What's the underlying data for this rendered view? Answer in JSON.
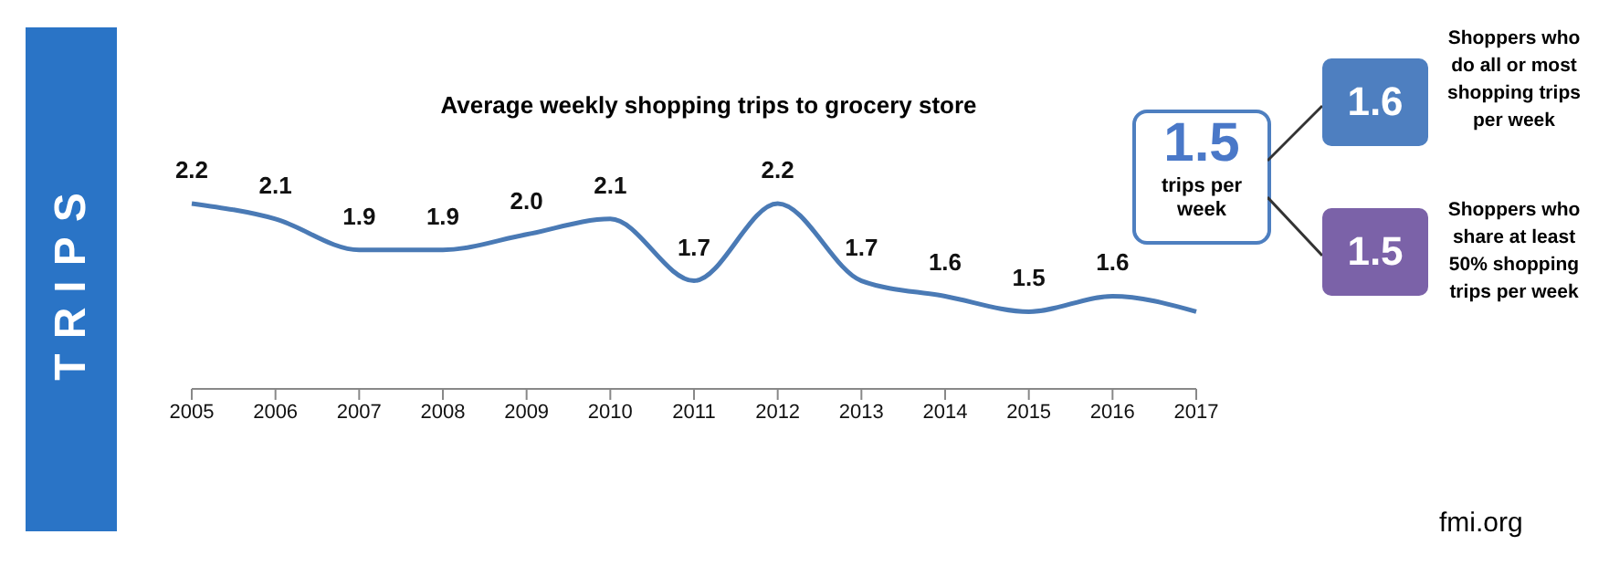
{
  "chart_data": {
    "type": "line",
    "title": "Average weekly shopping trips to grocery store",
    "categories": [
      "2005",
      "2006",
      "2007",
      "2008",
      "2009",
      "2010",
      "2011",
      "2012",
      "2013",
      "2014",
      "2015",
      "2016",
      "2017"
    ],
    "series": [
      {
        "color": "#4a7ab5",
        "values": [
          2.2,
          2.1,
          1.9,
          1.9,
          2.0,
          2.1,
          1.7,
          2.2,
          1.7,
          1.6,
          1.5,
          1.6,
          1.5
        ],
        "value_labels": [
          "2.2",
          "2.1",
          "1.9",
          "1.9",
          "2.0",
          "2.1",
          "1.7",
          "2.2",
          "1.7",
          "1.6",
          "1.5",
          "1.6",
          null
        ]
      }
    ],
    "marker": "none",
    "tick_labels": "x",
    "annotations": [
      "TRIPS",
      "1.5",
      "trips per week",
      "1.6",
      "Shoppers who do all or most shopping trips per week",
      "1.5",
      "Shoppers who share at least 50% shopping trips per week",
      "fmi.org"
    ]
  }
}
